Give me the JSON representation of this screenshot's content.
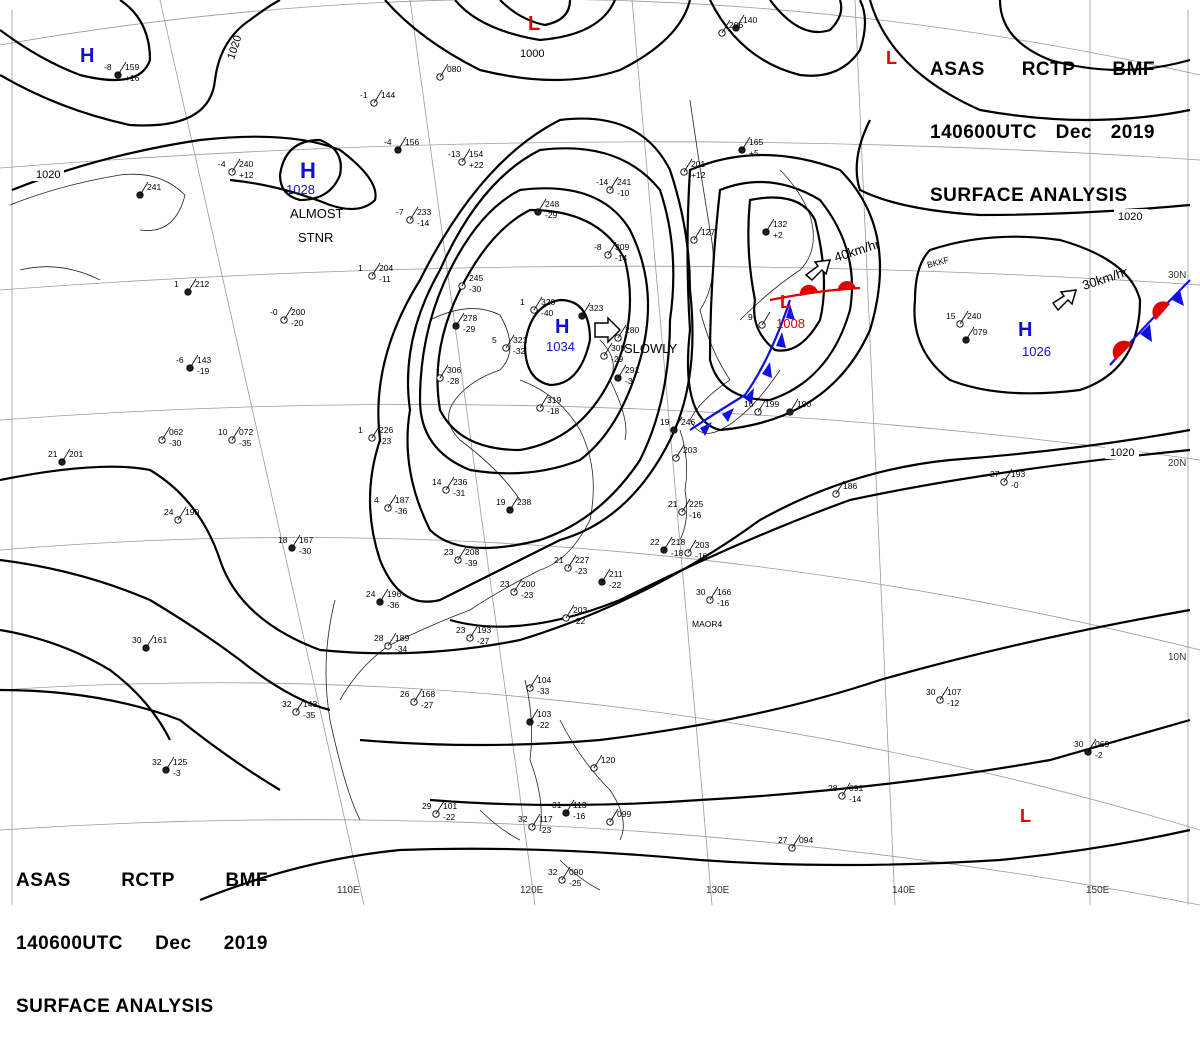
{
  "header": {
    "agency": "ASAS",
    "center": "RCTP",
    "issuer": "BMF",
    "time": "140600UTC",
    "month": "Dec",
    "year": "2019",
    "title": "SURFACE ANALYSIS"
  },
  "colors": {
    "high": "#1010d0",
    "low": "#e00000",
    "isobar": "#000000",
    "coast": "#000000",
    "grid": "#999999",
    "cold_front": "#1010e0",
    "warm_front": "#e00000"
  },
  "longitudes": [
    "110E",
    "120E",
    "130E",
    "140E",
    "150E"
  ],
  "latitudes": [
    "30N",
    "20N",
    "10N"
  ],
  "isobar_labels": [
    "1020",
    "1020",
    "1020",
    "1000",
    "1020"
  ],
  "pressure_centers": [
    {
      "letter": "H",
      "value": "",
      "type": "high"
    },
    {
      "letter": "H",
      "value": "1028",
      "type": "high"
    },
    {
      "letter": "H",
      "value": "1034",
      "type": "high"
    },
    {
      "letter": "H",
      "value": "1026",
      "type": "high"
    },
    {
      "letter": "L",
      "value": "1000",
      "type": "low"
    },
    {
      "letter": "L",
      "value": "1008",
      "type": "low"
    },
    {
      "letter": "L",
      "value": "",
      "type": "low"
    },
    {
      "letter": "L",
      "value": "",
      "type": "low"
    }
  ],
  "annotations": [
    "ALMOST",
    "STNR",
    "SLOWLY",
    "40km/hr",
    "30km/hr"
  ],
  "stations": [
    {
      "t": "-8",
      "p": "159",
      "d": "+16"
    },
    {
      "t": "",
      "p": "080",
      "d": ""
    },
    {
      "t": "-1",
      "p": "144",
      "d": ""
    },
    {
      "t": "-4",
      "p": "156",
      "d": ""
    },
    {
      "t": "-13",
      "p": "154",
      "d": "+22"
    },
    {
      "t": "-4",
      "p": "240",
      "d": "+12"
    },
    {
      "t": "",
      "p": "241",
      "d": ""
    },
    {
      "t": "-7",
      "p": "233",
      "d": "-14"
    },
    {
      "t": "-14",
      "p": "241",
      "d": "-10"
    },
    {
      "t": "",
      "p": "248",
      "d": "-29"
    },
    {
      "t": "-8",
      "p": "309",
      "d": "-14"
    },
    {
      "t": "",
      "p": "201",
      "d": "+12"
    },
    {
      "t": "",
      "p": "165",
      "d": "+5"
    },
    {
      "t": "",
      "p": "206",
      "d": ""
    },
    {
      "t": "1",
      "p": "204",
      "d": "-11"
    },
    {
      "t": "1",
      "p": "212",
      "d": ""
    },
    {
      "t": "-0",
      "p": "200",
      "d": "-20"
    },
    {
      "t": "",
      "p": "245",
      "d": "-30"
    },
    {
      "t": "",
      "p": "278",
      "d": "-29"
    },
    {
      "t": "5",
      "p": "321",
      "d": "-32"
    },
    {
      "t": "1",
      "p": "320",
      "d": "-40"
    },
    {
      "t": "",
      "p": "323",
      "d": ""
    },
    {
      "t": "",
      "p": "280",
      "d": ""
    },
    {
      "t": "",
      "p": "309",
      "d": "-29"
    },
    {
      "t": "",
      "p": "291",
      "d": "-3"
    },
    {
      "t": "",
      "p": "306",
      "d": "-28"
    },
    {
      "t": "",
      "p": "319",
      "d": "-18"
    },
    {
      "t": "-6",
      "p": "143",
      "d": "-19"
    },
    {
      "t": "10",
      "p": "072",
      "d": "-35"
    },
    {
      "t": "",
      "p": "062",
      "d": "-30"
    },
    {
      "t": "21",
      "p": "201",
      "d": ""
    },
    {
      "t": "1",
      "p": "226",
      "d": "-23"
    },
    {
      "t": "14",
      "p": "236",
      "d": "-31"
    },
    {
      "t": "19",
      "p": "238",
      "d": ""
    },
    {
      "t": "24",
      "p": "190",
      "d": ""
    },
    {
      "t": "4",
      "p": "187",
      "d": "-36"
    },
    {
      "t": "18",
      "p": "167",
      "d": "-30"
    },
    {
      "t": "23",
      "p": "208",
      "d": "-39"
    },
    {
      "t": "21",
      "p": "227",
      "d": "-23"
    },
    {
      "t": "",
      "p": "211",
      "d": "-22"
    },
    {
      "t": "23",
      "p": "200",
      "d": "-23"
    },
    {
      "t": "",
      "p": "203",
      "d": "-22"
    },
    {
      "t": "24",
      "p": "196",
      "d": "-36"
    },
    {
      "t": "28",
      "p": "189",
      "d": "-34"
    },
    {
      "t": "23",
      "p": "193",
      "d": "-27"
    },
    {
      "t": "30",
      "p": "161",
      "d": ""
    },
    {
      "t": "26",
      "p": "168",
      "d": "-27"
    },
    {
      "t": "32",
      "p": "143",
      "d": "-35"
    },
    {
      "t": "32",
      "p": "125",
      "d": "-3"
    },
    {
      "t": "29",
      "p": "101",
      "d": "-22"
    },
    {
      "t": "32",
      "p": "117",
      "d": "-23"
    },
    {
      "t": "",
      "p": "103",
      "d": "-22"
    },
    {
      "t": "",
      "p": "104",
      "d": "-33"
    },
    {
      "t": "",
      "p": "120",
      "d": ""
    },
    {
      "t": "31",
      "p": "113",
      "d": "-16"
    },
    {
      "t": "",
      "p": "099",
      "d": ""
    },
    {
      "t": "32",
      "p": "090",
      "d": "-25"
    },
    {
      "t": "19",
      "p": "246",
      "d": ""
    },
    {
      "t": "",
      "p": "203",
      "d": ""
    },
    {
      "t": "21",
      "p": "225",
      "d": "-16"
    },
    {
      "t": "22",
      "p": "218",
      "d": "-18"
    },
    {
      "t": "",
      "p": "203",
      "d": "-16"
    },
    {
      "t": "30",
      "p": "166",
      "d": "-16"
    },
    {
      "t": "",
      "p": "190",
      "d": ""
    },
    {
      "t": "16",
      "p": "199",
      "d": ""
    },
    {
      "t": "9",
      "p": "",
      "d": ""
    },
    {
      "t": "",
      "p": "132",
      "d": "+2"
    },
    {
      "t": "",
      "p": "186",
      "d": ""
    },
    {
      "t": "15",
      "p": "240",
      "d": ""
    },
    {
      "t": "",
      "p": "079",
      "d": ""
    },
    {
      "t": "27",
      "p": "193",
      "d": "-0"
    },
    {
      "t": "30",
      "p": "107",
      "d": "-12"
    },
    {
      "t": "30",
      "p": "069",
      "d": "-2"
    },
    {
      "t": "28",
      "p": "091",
      "d": "-14"
    },
    {
      "t": "27",
      "p": "094",
      "d": ""
    },
    {
      "t": "",
      "p": "140",
      "d": ""
    },
    {
      "t": "",
      "p": "127",
      "d": ""
    }
  ],
  "ship_ids": [
    "MAOR4",
    "BKKF"
  ]
}
